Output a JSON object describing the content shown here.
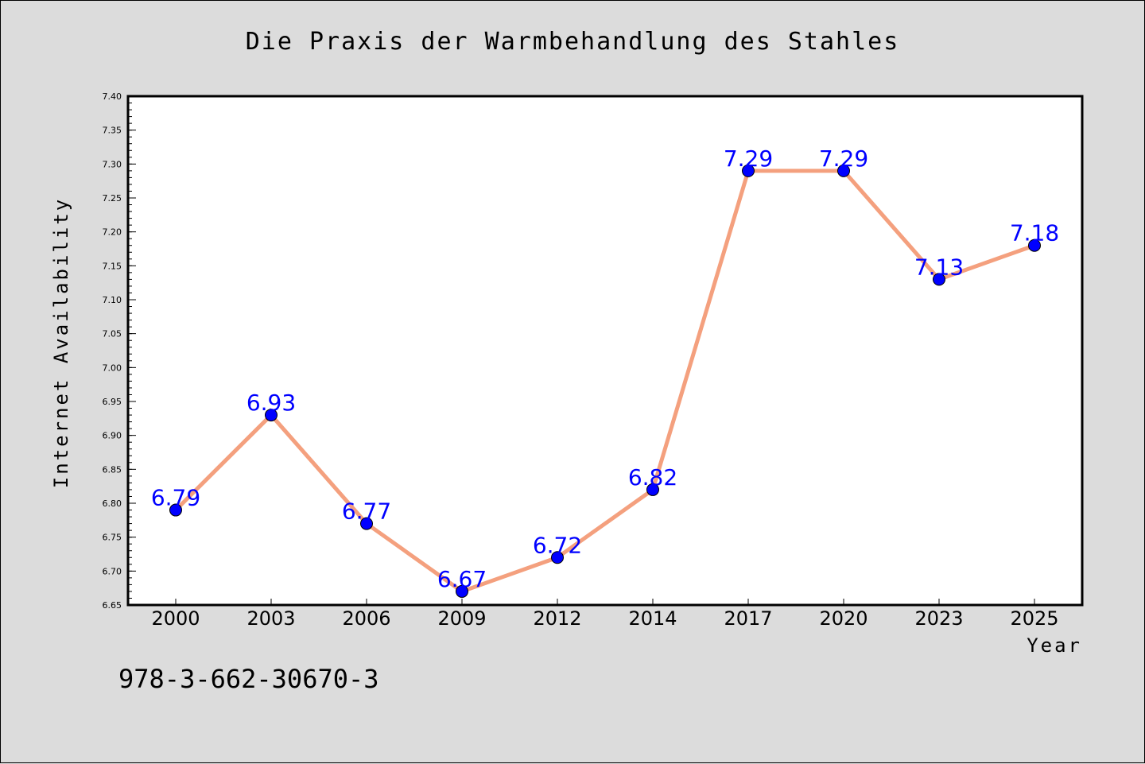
{
  "chart_data": {
    "type": "line",
    "title": "Die Praxis der Warmbehandlung des Stahles",
    "xlabel": "Year",
    "ylabel": "Internet Availability",
    "categories": [
      "2000",
      "2003",
      "2006",
      "2009",
      "2012",
      "2014",
      "2017",
      "2020",
      "2023",
      "2025"
    ],
    "series": [
      {
        "values": [
          6.79,
          6.93,
          6.77,
          6.67,
          6.72,
          6.82,
          7.29,
          7.29,
          7.13,
          7.18
        ],
        "data_labels": [
          "6.79",
          "6.93",
          "6.77",
          "6.67",
          "6.72",
          "6.82",
          "7.29",
          "7.29",
          "7.13",
          "7.18"
        ]
      }
    ],
    "ylim": [
      6.65,
      7.4
    ],
    "yticks": [
      "6.65",
      "6.70",
      "6.75",
      "6.80",
      "6.85",
      "6.90",
      "6.95",
      "7.00",
      "7.05",
      "7.10",
      "7.15",
      "7.20",
      "7.25",
      "7.30",
      "7.35",
      "7.40"
    ],
    "grid": false,
    "legend": "none",
    "colors": {
      "line": "#f4a07e",
      "marker": "#0000ff",
      "label": "#0000ff",
      "plot_background": "#ffffff",
      "figure_background": "#dcdcdc"
    }
  },
  "annotation": "978-3-662-30670-3"
}
